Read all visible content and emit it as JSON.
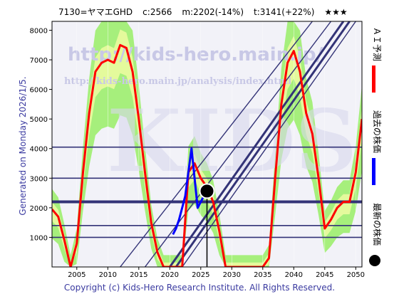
{
  "header": {
    "ticker": "7130=ヤマエGHD",
    "current": "c:2566",
    "median": "m:2202(-14%)",
    "target": "t:3141(+22%)",
    "stars": "★★★"
  },
  "generated": "Generated on Monday 2026/1/5.",
  "copyright": "Copyright (c) Kids-Hero Research Institute. All Rights Reserved.",
  "watermark": {
    "line1": "http://kids-hero.main.jp/",
    "line2": "http://kids-hero.main.jp/analysis/index.html",
    "big": "KIDS"
  },
  "legend": {
    "ai_forecast": "ＡＩ予測",
    "past_price": "過去の株価",
    "latest_price": "最新の株価"
  },
  "colors": {
    "forecast": "#ff0000",
    "past": "#0000ff",
    "latest": "#000000",
    "band_light": "#99ee66",
    "band_yellow": "#ffffaa",
    "trend": "#333377",
    "background": "#f2f2f8"
  },
  "chart_data": {
    "type": "line",
    "xlim": [
      2001,
      2051
    ],
    "ylim": [
      0,
      8300
    ],
    "x_ticks": [
      2005,
      2010,
      2015,
      2020,
      2025,
      2030,
      2035,
      2040,
      2045,
      2050
    ],
    "y_ticks": [
      1000,
      2000,
      3000,
      4000,
      5000,
      6000,
      7000,
      8000
    ],
    "horizontal_levels": [
      1000,
      1400,
      2200,
      3000,
      4050
    ],
    "median_level": 2202,
    "series": [
      {
        "name": "ＡＩ予測",
        "x": [
          2001,
          2002,
          2003,
          2004,
          2005,
          2006,
          2007,
          2008,
          2009,
          2010,
          2011,
          2012,
          2013,
          2014,
          2015,
          2016,
          2017,
          2018,
          2019,
          2020,
          2021,
          2022,
          2023,
          2024,
          2025,
          2026,
          2027,
          2028,
          2029,
          2030,
          2031,
          2032,
          2033,
          2034,
          2035,
          2036,
          2037,
          2038,
          2039,
          2040,
          2041,
          2042,
          2043,
          2044,
          2045,
          2046,
          2047,
          2048,
          2049,
          2050,
          2051
        ],
        "values": [
          1950,
          1700,
          900,
          0,
          800,
          3200,
          5200,
          6600,
          6900,
          7000,
          6900,
          7500,
          7400,
          6600,
          5000,
          3200,
          1500,
          500,
          0,
          0,
          0,
          0,
          3200,
          3500,
          3000,
          2700,
          2200,
          1200,
          0,
          0,
          0,
          0,
          0,
          0,
          0,
          300,
          3000,
          5500,
          6900,
          7300,
          6600,
          5200,
          4500,
          3000,
          1300,
          1600,
          2000,
          2200,
          2200,
          3200,
          5000
        ]
      },
      {
        "name": "過去の株価",
        "x": [
          2020.5,
          2021,
          2021.5,
          2022,
          2022.5,
          2023,
          2023.5,
          2024,
          2024.5,
          2025,
          2025.5,
          2026
        ],
        "values": [
          1100,
          1300,
          1600,
          2000,
          2400,
          3200,
          4000,
          3000,
          2000,
          2200,
          2400,
          2566
        ]
      }
    ],
    "latest_point": {
      "x": 2026,
      "y": 2566
    },
    "trend_lines": [
      {
        "x1": 2012,
        "y1": 0,
        "x2": 2043,
        "y2": 8300
      },
      {
        "x1": 2016,
        "y1": 0,
        "x2": 2046,
        "y2": 8300
      },
      {
        "x1": 2020,
        "y1": 0,
        "x2": 2048,
        "y2": 8300
      },
      {
        "x1": 2021,
        "y1": 0,
        "x2": 2049,
        "y2": 8300
      },
      {
        "x1": 2022,
        "y1": 0,
        "x2": 2050,
        "y2": 8300
      }
    ]
  }
}
